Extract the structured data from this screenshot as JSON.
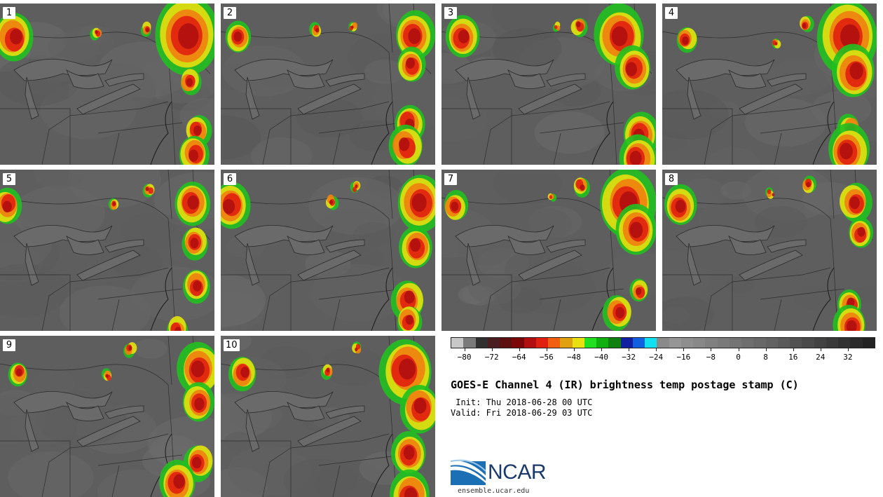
{
  "panels": [
    {
      "label": "1"
    },
    {
      "label": "2"
    },
    {
      "label": "3"
    },
    {
      "label": "4"
    },
    {
      "label": "5"
    },
    {
      "label": "6"
    },
    {
      "label": "7"
    },
    {
      "label": "8"
    },
    {
      "label": "9"
    },
    {
      "label": "10"
    }
  ],
  "colorbar": {
    "colors": [
      "#c8c8c8",
      "#7a7a7a",
      "#303030",
      "#4a1f1f",
      "#5c1010",
      "#7a0808",
      "#b01010",
      "#e02010",
      "#f06010",
      "#e0a010",
      "#e8e010",
      "#20e020",
      "#10b010",
      "#108010",
      "#1020a0",
      "#1060e0",
      "#10e0f0",
      "#8a8a8a",
      "#969696",
      "#8e8e8e",
      "#888888",
      "#808080",
      "#7a7a7a",
      "#747474",
      "#6e6e6e",
      "#686868",
      "#626262",
      "#5a5a5a",
      "#525252",
      "#4a4a4a",
      "#424242",
      "#3a3a3a",
      "#323232",
      "#2a2a2a",
      "#222222"
    ],
    "tick_labels": [
      "−80",
      "−72",
      "−64",
      "−56",
      "−48",
      "−40",
      "−32",
      "−24",
      "−16",
      "−8",
      "0",
      "8",
      "16",
      "24",
      "32"
    ],
    "min": -84,
    "max": 40
  },
  "title": "GOES-E Channel 4 (IR) brightness temp postage stamp (C)",
  "init": " Init: Thu 2018-06-28 00 UTC",
  "valid": "Valid: Fri 2018-06-29 03 UTC",
  "logo": {
    "text": "NCAR",
    "colors": {
      "blue": "#1b6fb5",
      "navy": "#1b3a6b"
    }
  },
  "site": "ensemble.ucar.edu"
}
